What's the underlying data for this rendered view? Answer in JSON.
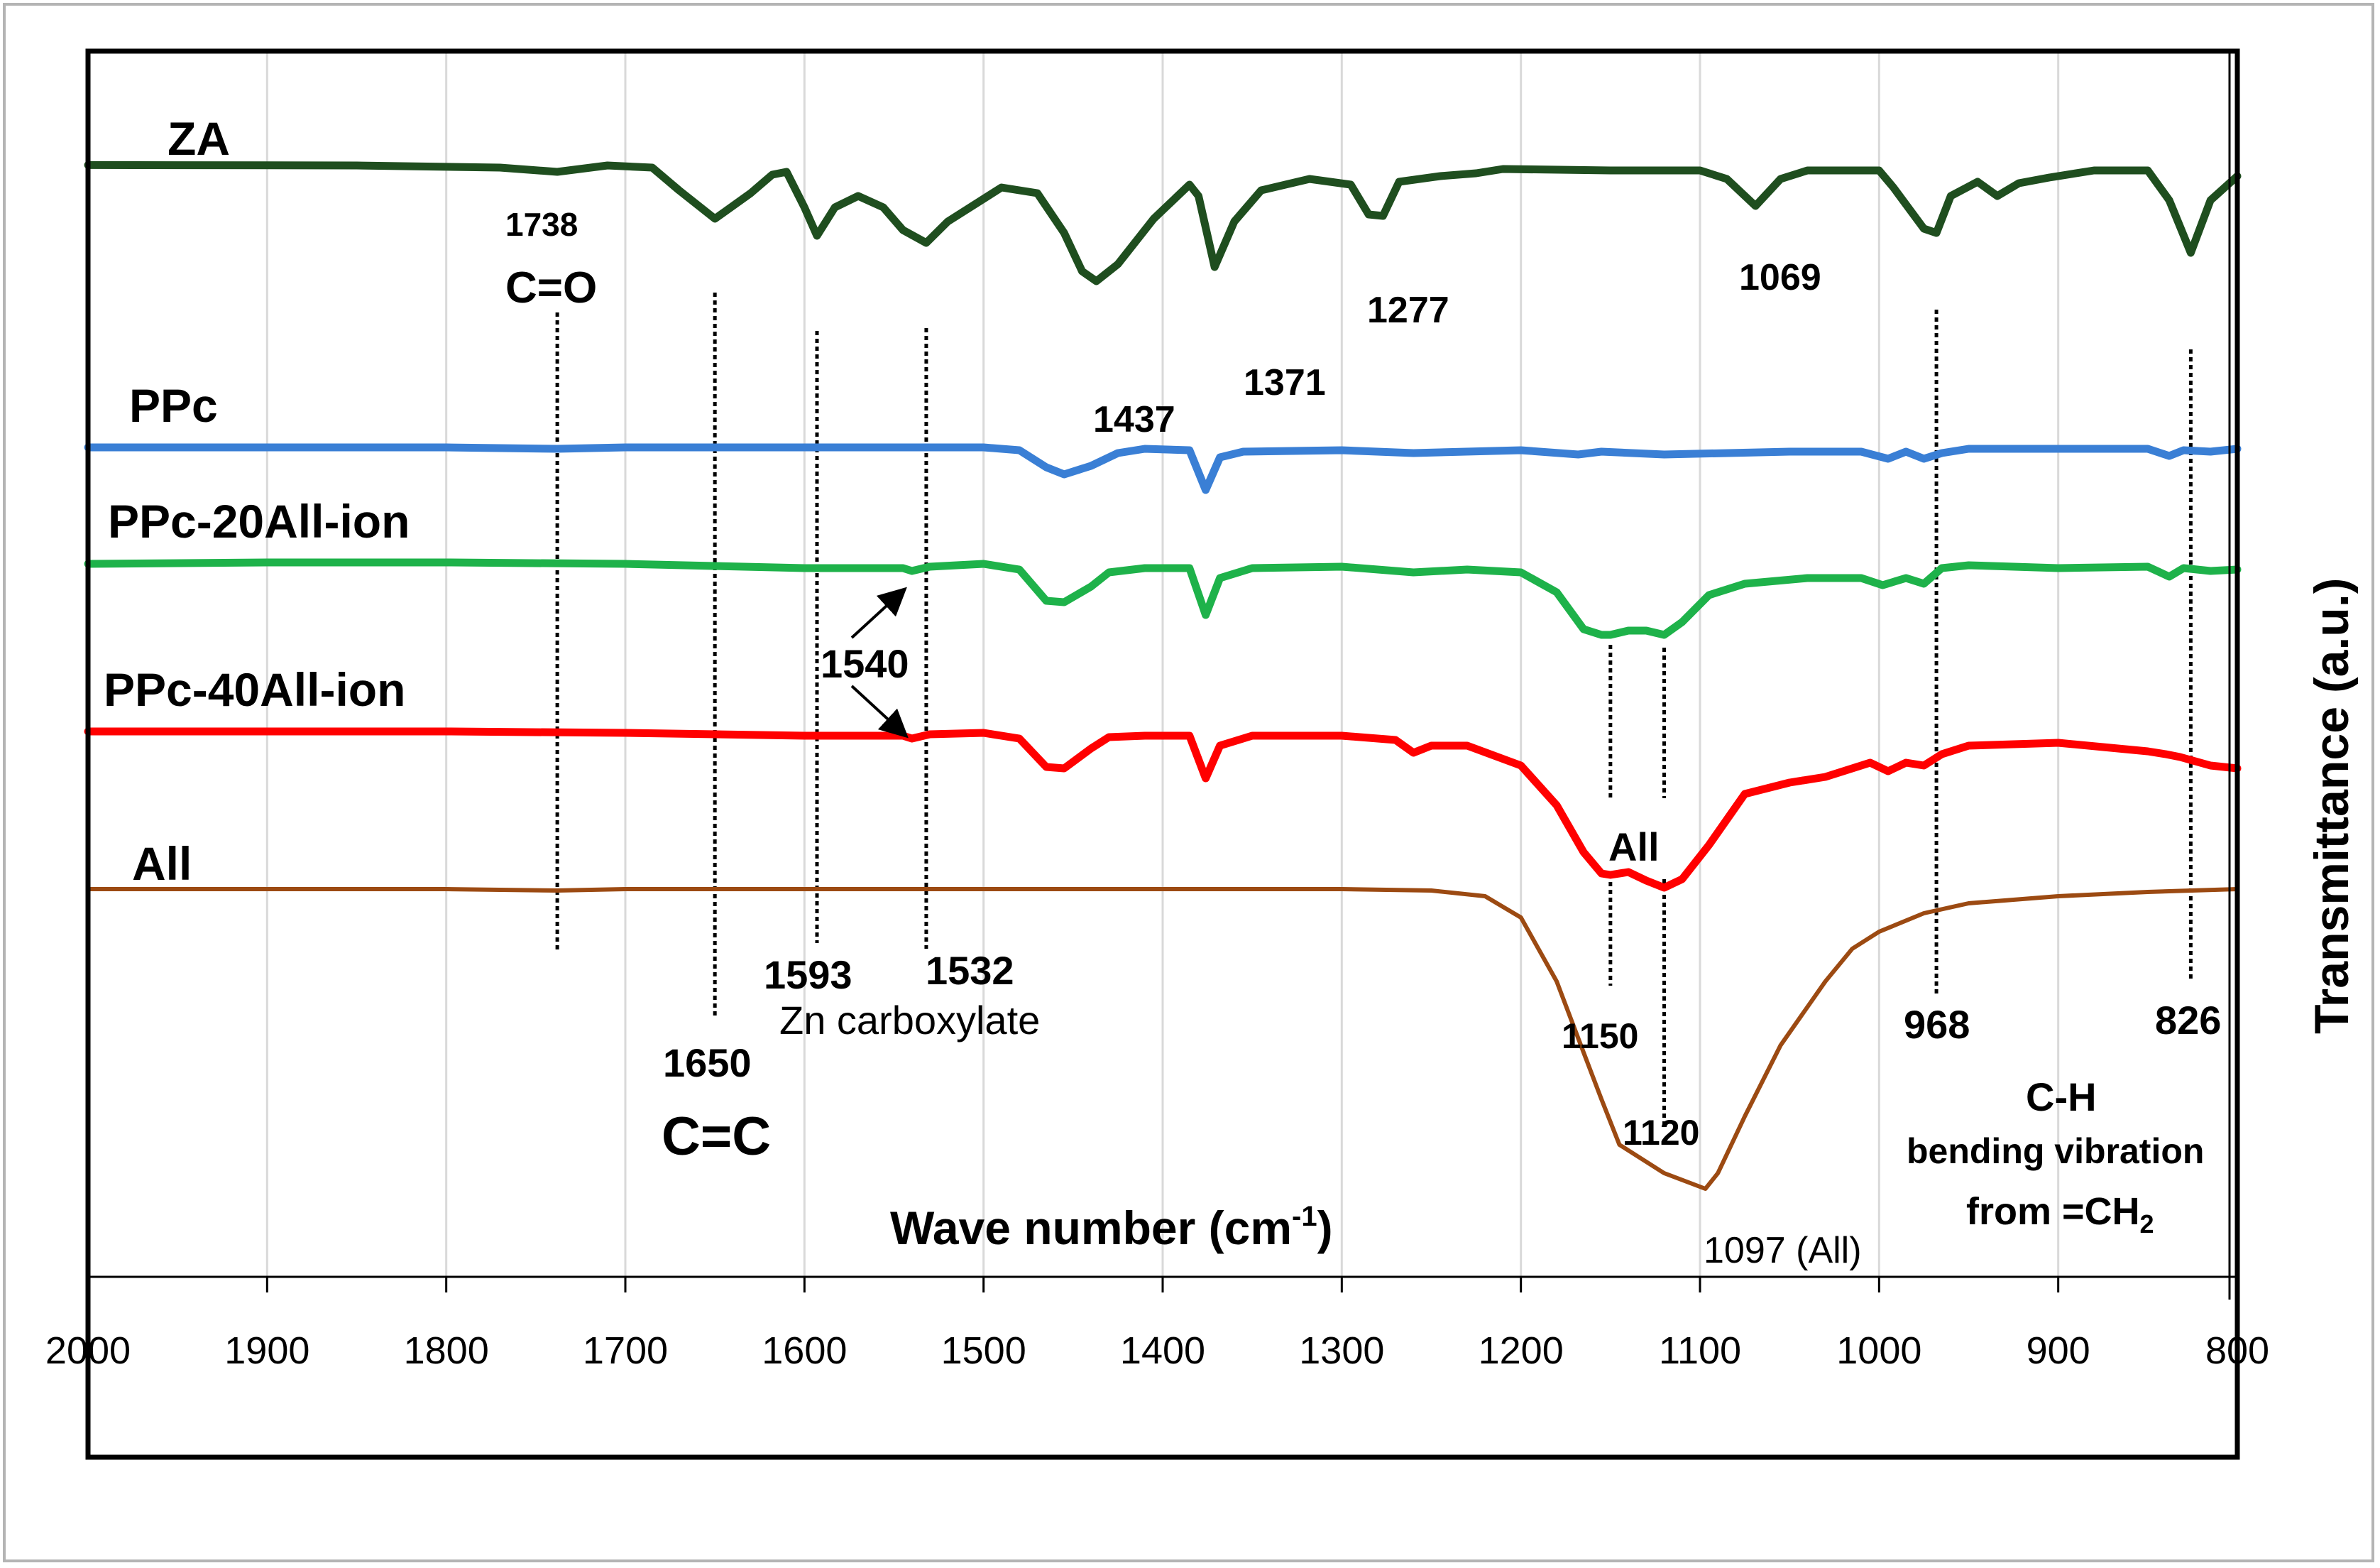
{
  "chart_data": {
    "type": "line",
    "title": "",
    "xlabel": "Wave number (cm⁻¹)",
    "ylabel": "Transmittance (a.u.)",
    "xlim": [
      2000,
      800
    ],
    "x_reversed": true,
    "x_ticks": [
      "2000",
      "1900",
      "1800",
      "1700",
      "1600",
      "1500",
      "1400",
      "1300",
      "1200",
      "1100",
      "1000",
      "900",
      "800"
    ],
    "grid": "vertical",
    "legend": "none",
    "series": [
      {
        "name": "ZA",
        "color": "#1f4e1f",
        "points": [
          [
            2000,
            0.2
          ],
          [
            1950,
            0.3
          ],
          [
            1850,
            0.5
          ],
          [
            1770,
            2
          ],
          [
            1738,
            5
          ],
          [
            1710,
            0.5
          ],
          [
            1685,
            2
          ],
          [
            1670,
            18
          ],
          [
            1650,
            38
          ],
          [
            1630,
            20
          ],
          [
            1618,
            7
          ],
          [
            1610,
            5
          ],
          [
            1600,
            30
          ],
          [
            1593,
            50
          ],
          [
            1583,
            30
          ],
          [
            1570,
            22
          ],
          [
            1556,
            30
          ],
          [
            1545,
            46
          ],
          [
            1532,
            55
          ],
          [
            1520,
            40
          ],
          [
            1490,
            16
          ],
          [
            1470,
            20
          ],
          [
            1455,
            48
          ],
          [
            1445,
            75
          ],
          [
            1437,
            82
          ],
          [
            1425,
            70
          ],
          [
            1405,
            38
          ],
          [
            1385,
            14
          ],
          [
            1380,
            22
          ],
          [
            1371,
            72
          ],
          [
            1360,
            40
          ],
          [
            1345,
            18
          ],
          [
            1318,
            10
          ],
          [
            1295,
            14
          ],
          [
            1285,
            35
          ],
          [
            1277,
            36
          ],
          [
            1268,
            12
          ],
          [
            1245,
            8
          ],
          [
            1225,
            6
          ],
          [
            1210,
            3
          ],
          [
            1150,
            4
          ],
          [
            1100,
            4
          ],
          [
            1085,
            10
          ],
          [
            1069,
            29
          ],
          [
            1055,
            10
          ],
          [
            1040,
            4
          ],
          [
            1000,
            4
          ],
          [
            992,
            16
          ],
          [
            975,
            45
          ],
          [
            968,
            48
          ],
          [
            960,
            22
          ],
          [
            945,
            12
          ],
          [
            934,
            22
          ],
          [
            922,
            13
          ],
          [
            905,
            9
          ],
          [
            880,
            4
          ],
          [
            850,
            4
          ],
          [
            838,
            25
          ],
          [
            826,
            62
          ],
          [
            815,
            25
          ],
          [
            800,
            8
          ]
        ]
      },
      {
        "name": "PPc",
        "color": "#3a7fd5",
        "points": [
          [
            2000,
            1
          ],
          [
            1900,
            1
          ],
          [
            1800,
            1
          ],
          [
            1738,
            2
          ],
          [
            1700,
            1
          ],
          [
            1600,
            1
          ],
          [
            1500,
            1
          ],
          [
            1480,
            3
          ],
          [
            1465,
            15
          ],
          [
            1455,
            20
          ],
          [
            1440,
            14
          ],
          [
            1425,
            5
          ],
          [
            1410,
            2
          ],
          [
            1385,
            3
          ],
          [
            1376,
            31
          ],
          [
            1368,
            8
          ],
          [
            1355,
            4
          ],
          [
            1300,
            3
          ],
          [
            1260,
            5
          ],
          [
            1200,
            3
          ],
          [
            1168,
            6
          ],
          [
            1155,
            4
          ],
          [
            1120,
            6
          ],
          [
            1050,
            4
          ],
          [
            1010,
            4
          ],
          [
            995,
            9
          ],
          [
            985,
            4
          ],
          [
            975,
            9
          ],
          [
            965,
            5
          ],
          [
            950,
            2
          ],
          [
            900,
            2
          ],
          [
            850,
            2
          ],
          [
            838,
            7
          ],
          [
            830,
            3
          ],
          [
            815,
            4
          ],
          [
            800,
            2
          ]
        ]
      },
      {
        "name": "PPc-20All-ion",
        "color": "#1eb24a",
        "points": [
          [
            2000,
            2
          ],
          [
            1900,
            1
          ],
          [
            1800,
            1
          ],
          [
            1700,
            2
          ],
          [
            1600,
            5
          ],
          [
            1545,
            5
          ],
          [
            1540,
            7
          ],
          [
            1530,
            4
          ],
          [
            1500,
            2
          ],
          [
            1480,
            6
          ],
          [
            1465,
            28
          ],
          [
            1455,
            29
          ],
          [
            1440,
            18
          ],
          [
            1430,
            8
          ],
          [
            1410,
            5
          ],
          [
            1385,
            5
          ],
          [
            1376,
            38
          ],
          [
            1368,
            12
          ],
          [
            1350,
            5
          ],
          [
            1300,
            4
          ],
          [
            1260,
            8
          ],
          [
            1230,
            6
          ],
          [
            1200,
            8
          ],
          [
            1180,
            22
          ],
          [
            1165,
            48
          ],
          [
            1155,
            52
          ],
          [
            1150,
            52
          ],
          [
            1140,
            49
          ],
          [
            1130,
            49
          ],
          [
            1120,
            52
          ],
          [
            1110,
            43
          ],
          [
            1095,
            24
          ],
          [
            1075,
            16
          ],
          [
            1040,
            12
          ],
          [
            1010,
            12
          ],
          [
            998,
            17
          ],
          [
            985,
            12
          ],
          [
            975,
            16
          ],
          [
            965,
            5
          ],
          [
            950,
            3
          ],
          [
            900,
            5
          ],
          [
            850,
            4
          ],
          [
            838,
            11
          ],
          [
            830,
            5
          ],
          [
            815,
            7
          ],
          [
            800,
            6
          ]
        ]
      },
      {
        "name": "PPc-40All-ion",
        "color": "#ff0000",
        "points": [
          [
            2000,
            0
          ],
          [
            1900,
            0
          ],
          [
            1800,
            0
          ],
          [
            1700,
            1
          ],
          [
            1600,
            3
          ],
          [
            1545,
            3
          ],
          [
            1540,
            5
          ],
          [
            1530,
            2
          ],
          [
            1500,
            1
          ],
          [
            1480,
            5
          ],
          [
            1465,
            25
          ],
          [
            1455,
            26
          ],
          [
            1440,
            12
          ],
          [
            1430,
            4
          ],
          [
            1410,
            3
          ],
          [
            1385,
            3
          ],
          [
            1376,
            33
          ],
          [
            1368,
            10
          ],
          [
            1350,
            3
          ],
          [
            1300,
            3
          ],
          [
            1270,
            6
          ],
          [
            1260,
            15
          ],
          [
            1250,
            10
          ],
          [
            1230,
            10
          ],
          [
            1200,
            24
          ],
          [
            1180,
            52
          ],
          [
            1165,
            85
          ],
          [
            1155,
            100
          ],
          [
            1150,
            101
          ],
          [
            1140,
            99
          ],
          [
            1130,
            105
          ],
          [
            1120,
            110
          ],
          [
            1110,
            104
          ],
          [
            1095,
            80
          ],
          [
            1075,
            44
          ],
          [
            1050,
            36
          ],
          [
            1030,
            32
          ],
          [
            1015,
            26
          ],
          [
            1005,
            22
          ],
          [
            995,
            28
          ],
          [
            985,
            22
          ],
          [
            975,
            24
          ],
          [
            965,
            16
          ],
          [
            950,
            10
          ],
          [
            900,
            8
          ],
          [
            850,
            14
          ],
          [
            840,
            16
          ],
          [
            832,
            18
          ],
          [
            815,
            24
          ],
          [
            800,
            26
          ]
        ]
      },
      {
        "name": "All",
        "color": "#9c4a12",
        "points": [
          [
            2000,
            0
          ],
          [
            1800,
            0
          ],
          [
            1738,
            1
          ],
          [
            1700,
            0
          ],
          [
            1600,
            0
          ],
          [
            1500,
            0
          ],
          [
            1400,
            0
          ],
          [
            1300,
            0
          ],
          [
            1250,
            1
          ],
          [
            1220,
            5
          ],
          [
            1200,
            20
          ],
          [
            1180,
            65
          ],
          [
            1165,
            115
          ],
          [
            1155,
            148
          ],
          [
            1145,
            180
          ],
          [
            1120,
            200
          ],
          [
            1097,
            211
          ],
          [
            1090,
            200
          ],
          [
            1075,
            160
          ],
          [
            1055,
            110
          ],
          [
            1030,
            65
          ],
          [
            1015,
            42
          ],
          [
            1000,
            30
          ],
          [
            975,
            17
          ],
          [
            950,
            10
          ],
          [
            900,
            5
          ],
          [
            850,
            2
          ],
          [
            800,
            0
          ]
        ]
      }
    ],
    "annotations": {
      "za_1738": "1738",
      "co": "C=O",
      "za_1437": "1437",
      "za_1371": "1371",
      "za_1277": "1277",
      "za_1069": "1069",
      "p1540": "1540",
      "all_mid": "All",
      "p1593": "1593",
      "p1532": "1532",
      "zn": "Zn carboxylate",
      "p1650": "1650",
      "cc": "C=C",
      "p1150": "1150",
      "p1120": "1120",
      "p1097": "1097 (All)",
      "p968": "968",
      "p826": "826",
      "ch1": "C-H",
      "ch2": "bending vibration",
      "ch3_prefix": "from =CH",
      "ch3_sub": "2"
    },
    "dotted_lines_at": [
      1738,
      1650,
      1593,
      1532,
      1150,
      1120,
      968,
      826
    ]
  }
}
